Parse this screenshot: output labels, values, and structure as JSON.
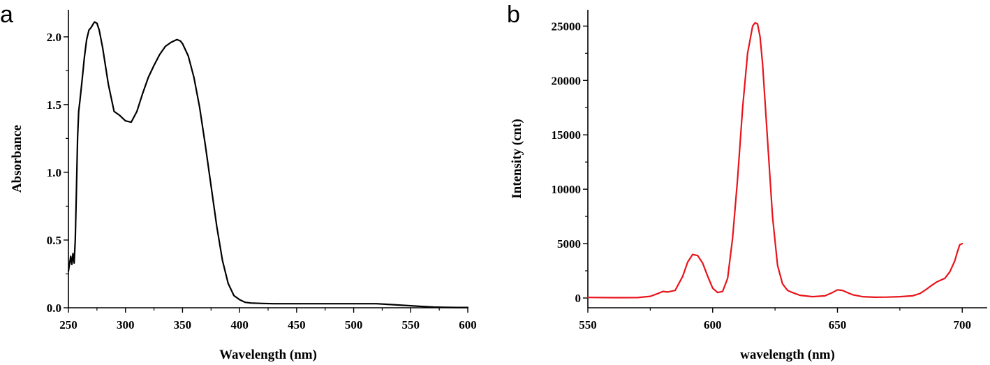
{
  "chart_data": [
    {
      "type": "line",
      "panel_label": "a",
      "xlabel": "Wavelength (nm)",
      "ylabel": "Absorbance",
      "xlim": [
        250,
        600
      ],
      "ylim": [
        0,
        2.2
      ],
      "xticks": [
        250,
        300,
        350,
        400,
        450,
        500,
        550,
        600
      ],
      "xtick_labels": [
        "250",
        "300",
        "350",
        "400",
        "450",
        "500",
        "550",
        "600"
      ],
      "yticks": [
        0,
        0.5,
        1,
        1.5,
        2
      ],
      "ytick_labels": [
        "0.0",
        "0.5",
        "1.0",
        "1.5",
        "2.0"
      ],
      "grid": false,
      "color": "#000000",
      "series": [
        {
          "x": [
            250,
            252,
            253,
            254,
            255,
            256,
            257,
            258,
            259,
            260,
            262,
            264,
            266,
            268,
            270,
            272,
            273,
            275,
            277,
            280,
            285,
            290,
            295,
            300,
            305,
            310,
            315,
            320,
            325,
            330,
            335,
            340,
            345,
            348,
            350,
            355,
            360,
            365,
            370,
            375,
            380,
            385,
            390,
            395,
            400,
            405,
            410,
            420,
            430,
            450,
            480,
            500,
            520,
            530,
            540,
            550,
            560,
            570,
            580,
            590,
            600
          ],
          "y": [
            0.27,
            0.38,
            0.32,
            0.4,
            0.33,
            0.5,
            0.85,
            1.25,
            1.45,
            1.52,
            1.68,
            1.85,
            1.98,
            2.05,
            2.07,
            2.1,
            2.11,
            2.1,
            2.05,
            1.92,
            1.65,
            1.45,
            1.42,
            1.38,
            1.37,
            1.45,
            1.58,
            1.7,
            1.79,
            1.87,
            1.93,
            1.96,
            1.98,
            1.97,
            1.95,
            1.86,
            1.7,
            1.48,
            1.2,
            0.9,
            0.6,
            0.35,
            0.18,
            0.09,
            0.06,
            0.04,
            0.035,
            0.032,
            0.03,
            0.03,
            0.03,
            0.03,
            0.03,
            0.025,
            0.02,
            0.015,
            0.01,
            0.005,
            0.003,
            0.002,
            0.002
          ]
        }
      ]
    },
    {
      "type": "line",
      "panel_label": "b",
      "xlabel": "wavelength (nm)",
      "ylabel": "Intensity (cnt)",
      "xlim": [
        550,
        710
      ],
      "ylim": [
        -900,
        26500
      ],
      "xticks": [
        550,
        600,
        650,
        700
      ],
      "xtick_labels": [
        "550",
        "600",
        "650",
        "700"
      ],
      "yticks": [
        0,
        5000,
        10000,
        15000,
        20000,
        25000
      ],
      "ytick_labels": [
        "0",
        "5000",
        "10000",
        "15000",
        "20000",
        "25000"
      ],
      "grid": false,
      "color": "#e8141b",
      "series": [
        {
          "x": [
            550,
            560,
            570,
            575,
            578,
            580,
            582,
            585,
            588,
            590,
            592,
            594,
            596,
            598,
            600,
            602,
            604,
            606,
            608,
            610,
            612,
            614,
            616,
            617,
            618,
            619,
            620,
            622,
            624,
            626,
            628,
            630,
            632,
            635,
            640,
            645,
            648,
            650,
            652,
            654,
            656,
            660,
            665,
            670,
            675,
            680,
            683,
            685,
            688,
            690,
            693,
            695,
            697,
            698,
            699,
            700
          ],
          "y": [
            50,
            30,
            40,
            150,
            400,
            600,
            550,
            700,
            2000,
            3300,
            4000,
            3900,
            3200,
            2000,
            900,
            500,
            600,
            1800,
            5500,
            11000,
            17500,
            22500,
            25000,
            25300,
            25200,
            24000,
            21500,
            14500,
            7500,
            3000,
            1300,
            700,
            500,
            250,
            120,
            200,
            500,
            750,
            700,
            500,
            300,
            120,
            70,
            80,
            120,
            200,
            400,
            700,
            1200,
            1500,
            1800,
            2400,
            3400,
            4200,
            4900,
            5000
          ]
        }
      ]
    }
  ]
}
